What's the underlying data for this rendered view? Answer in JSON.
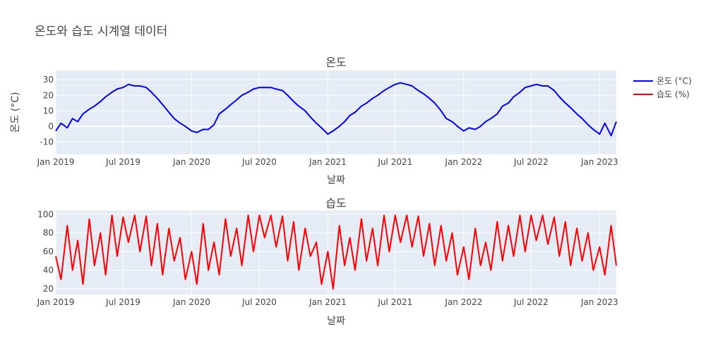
{
  "figure": {
    "title": "온도와 습도 시계열 데이터",
    "legend_position": "top-right",
    "plot_bg": "#E5ECF6",
    "grid_color": "#FFFFFF",
    "text_color": "#444444",
    "title_color": "#444444"
  },
  "legend": [
    {
      "name": "온도 (°C)",
      "color": "#0000FF"
    },
    {
      "name": "습도 (%)",
      "color": "#FF0000"
    }
  ],
  "chart_data": [
    {
      "type": "line",
      "title": "온도",
      "xlabel": "날짜",
      "ylabel": "온도 (°C)",
      "x_range": [
        "2019-01-01",
        "2023-02-15"
      ],
      "ylim": [
        -18,
        36
      ],
      "x_ticks": [
        "Jan 2019",
        "Jul 2019",
        "Jan 2020",
        "Jul 2020",
        "Jan 2021",
        "Jul 2021",
        "Jan 2022",
        "Jul 2022",
        "Jan 2023"
      ],
      "y_ticks": [
        -10,
        0,
        10,
        20,
        30
      ],
      "grid": true,
      "series": [
        {
          "name": "온도 (°C)",
          "color": "#0000FF",
          "x": [
            "2019-01-01",
            "2019-01-15",
            "2019-02-01",
            "2019-02-15",
            "2019-03-01",
            "2019-03-15",
            "2019-04-01",
            "2019-04-15",
            "2019-05-01",
            "2019-05-15",
            "2019-06-01",
            "2019-06-15",
            "2019-07-01",
            "2019-07-15",
            "2019-08-01",
            "2019-08-15",
            "2019-09-01",
            "2019-09-15",
            "2019-10-01",
            "2019-10-15",
            "2019-11-01",
            "2019-11-15",
            "2019-12-01",
            "2019-12-15",
            "2020-01-01",
            "2020-01-15",
            "2020-02-01",
            "2020-02-15",
            "2020-03-01",
            "2020-03-15",
            "2020-04-01",
            "2020-04-15",
            "2020-05-01",
            "2020-05-15",
            "2020-06-01",
            "2020-06-15",
            "2020-07-01",
            "2020-07-15",
            "2020-08-01",
            "2020-08-15",
            "2020-09-01",
            "2020-09-15",
            "2020-10-01",
            "2020-10-15",
            "2020-11-01",
            "2020-11-15",
            "2020-12-01",
            "2020-12-15",
            "2021-01-01",
            "2021-01-15",
            "2021-02-01",
            "2021-02-15",
            "2021-03-01",
            "2021-03-15",
            "2021-04-01",
            "2021-04-15",
            "2021-05-01",
            "2021-05-15",
            "2021-06-01",
            "2021-06-15",
            "2021-07-01",
            "2021-07-15",
            "2021-08-01",
            "2021-08-15",
            "2021-09-01",
            "2021-09-15",
            "2021-10-01",
            "2021-10-15",
            "2021-11-01",
            "2021-11-15",
            "2021-12-01",
            "2021-12-15",
            "2022-01-01",
            "2022-01-15",
            "2022-02-01",
            "2022-02-15",
            "2022-03-01",
            "2022-03-15",
            "2022-04-01",
            "2022-04-15",
            "2022-05-01",
            "2022-05-15",
            "2022-06-01",
            "2022-06-15",
            "2022-07-01",
            "2022-07-15",
            "2022-08-01",
            "2022-08-15",
            "2022-09-01",
            "2022-09-15",
            "2022-10-01",
            "2022-10-15",
            "2022-11-01",
            "2022-11-15",
            "2022-12-01",
            "2022-12-15",
            "2023-01-01",
            "2023-01-15",
            "2023-02-01",
            "2023-02-15"
          ],
          "values": [
            -3,
            2,
            -1,
            5,
            3,
            8,
            11,
            13,
            16,
            19,
            22,
            24,
            25,
            27,
            26,
            26,
            25,
            22,
            18,
            14,
            9,
            5,
            2,
            0,
            -3,
            -4,
            -2,
            -2,
            1,
            8,
            11,
            14,
            17,
            20,
            22,
            24,
            25,
            25,
            25,
            24,
            23,
            20,
            16,
            13,
            10,
            6,
            2,
            -1,
            -5,
            -3,
            0,
            3,
            7,
            9,
            13,
            15,
            18,
            20,
            23,
            25,
            27,
            28,
            27,
            26,
            23,
            21,
            18,
            15,
            10,
            5,
            3,
            0,
            -3,
            -1,
            -2,
            0,
            3,
            5,
            8,
            13,
            15,
            19,
            22,
            25,
            26,
            27,
            26,
            26,
            23,
            19,
            15,
            12,
            8,
            5,
            1,
            -2,
            -5,
            2,
            -6,
            3
          ]
        }
      ]
    },
    {
      "type": "line",
      "title": "습도",
      "xlabel": "날짜",
      "ylabel": "",
      "x_range": [
        "2019-01-01",
        "2023-02-15"
      ],
      "ylim": [
        14,
        104
      ],
      "x_ticks": [
        "Jan 2019",
        "Jul 2019",
        "Jan 2020",
        "Jul 2020",
        "Jan 2021",
        "Jul 2021",
        "Jan 2022",
        "Jul 2022",
        "Jan 2023"
      ],
      "y_ticks": [
        20,
        40,
        60,
        80,
        100
      ],
      "grid": true,
      "series": [
        {
          "name": "습도 (%)",
          "color": "#FF0000",
          "x": [
            "2019-01-01",
            "2019-01-15",
            "2019-02-01",
            "2019-02-15",
            "2019-03-01",
            "2019-03-15",
            "2019-04-01",
            "2019-04-15",
            "2019-05-01",
            "2019-05-15",
            "2019-06-01",
            "2019-06-15",
            "2019-07-01",
            "2019-07-15",
            "2019-08-01",
            "2019-08-15",
            "2019-09-01",
            "2019-09-15",
            "2019-10-01",
            "2019-10-15",
            "2019-11-01",
            "2019-11-15",
            "2019-12-01",
            "2019-12-15",
            "2020-01-01",
            "2020-01-15",
            "2020-02-01",
            "2020-02-15",
            "2020-03-01",
            "2020-03-15",
            "2020-04-01",
            "2020-04-15",
            "2020-05-01",
            "2020-05-15",
            "2020-06-01",
            "2020-06-15",
            "2020-07-01",
            "2020-07-15",
            "2020-08-01",
            "2020-08-15",
            "2020-09-01",
            "2020-09-15",
            "2020-10-01",
            "2020-10-15",
            "2020-11-01",
            "2020-11-15",
            "2020-12-01",
            "2020-12-15",
            "2021-01-01",
            "2021-01-15",
            "2021-02-01",
            "2021-02-15",
            "2021-03-01",
            "2021-03-15",
            "2021-04-01",
            "2021-04-15",
            "2021-05-01",
            "2021-05-15",
            "2021-06-01",
            "2021-06-15",
            "2021-07-01",
            "2021-07-15",
            "2021-08-01",
            "2021-08-15",
            "2021-09-01",
            "2021-09-15",
            "2021-10-01",
            "2021-10-15",
            "2021-11-01",
            "2021-11-15",
            "2021-12-01",
            "2021-12-15",
            "2022-01-01",
            "2022-01-15",
            "2022-02-01",
            "2022-02-15",
            "2022-03-01",
            "2022-03-15",
            "2022-04-01",
            "2022-04-15",
            "2022-05-01",
            "2022-05-15",
            "2022-06-01",
            "2022-06-15",
            "2022-07-01",
            "2022-07-15",
            "2022-08-01",
            "2022-08-15",
            "2022-09-01",
            "2022-09-15",
            "2022-10-01",
            "2022-10-15",
            "2022-11-01",
            "2022-11-15",
            "2022-12-01",
            "2022-12-15",
            "2023-01-01",
            "2023-01-15",
            "2023-02-01",
            "2023-02-15"
          ],
          "values": [
            55,
            30,
            88,
            40,
            72,
            25,
            95,
            45,
            80,
            35,
            99,
            55,
            97,
            70,
            99,
            60,
            98,
            45,
            90,
            35,
            85,
            50,
            75,
            30,
            60,
            25,
            90,
            40,
            70,
            35,
            95,
            55,
            85,
            45,
            99,
            60,
            99,
            75,
            99,
            65,
            98,
            50,
            92,
            40,
            85,
            55,
            70,
            25,
            60,
            20,
            88,
            45,
            75,
            40,
            95,
            50,
            85,
            45,
            99,
            60,
            99,
            70,
            99,
            65,
            98,
            55,
            90,
            45,
            88,
            50,
            80,
            35,
            65,
            30,
            85,
            45,
            70,
            40,
            92,
            50,
            88,
            55,
            99,
            60,
            99,
            72,
            99,
            68,
            97,
            55,
            92,
            45,
            85,
            50,
            80,
            40,
            65,
            35,
            88,
            45
          ]
        }
      ]
    }
  ]
}
